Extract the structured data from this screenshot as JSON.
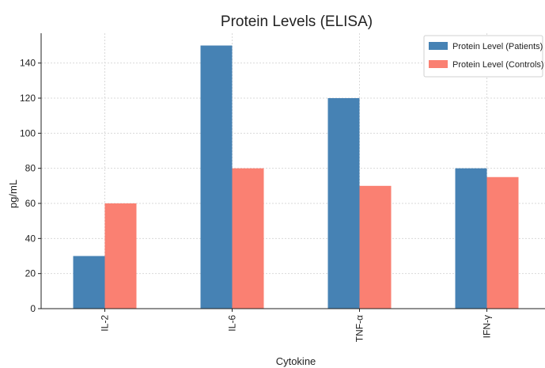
{
  "colors": {
    "patients": "#4682b4",
    "controls": "#fa8072"
  },
  "chart_data": {
    "type": "bar",
    "title": "Protein Levels (ELISA)",
    "xlabel": "Cytokine",
    "ylabel": "pg/mL",
    "categories": [
      "IL-2",
      "IL-6",
      "TNF-α",
      "IFN-γ"
    ],
    "series": [
      {
        "name": "Protein Level (Patients)",
        "values": [
          30,
          150,
          120,
          80
        ]
      },
      {
        "name": "Protein Level (Controls)",
        "values": [
          60,
          80,
          70,
          75
        ]
      }
    ],
    "ylim": [
      0,
      157
    ],
    "yticks": [
      0,
      20,
      40,
      60,
      80,
      100,
      120,
      140
    ],
    "grid": true,
    "legend_position": "top-right"
  }
}
